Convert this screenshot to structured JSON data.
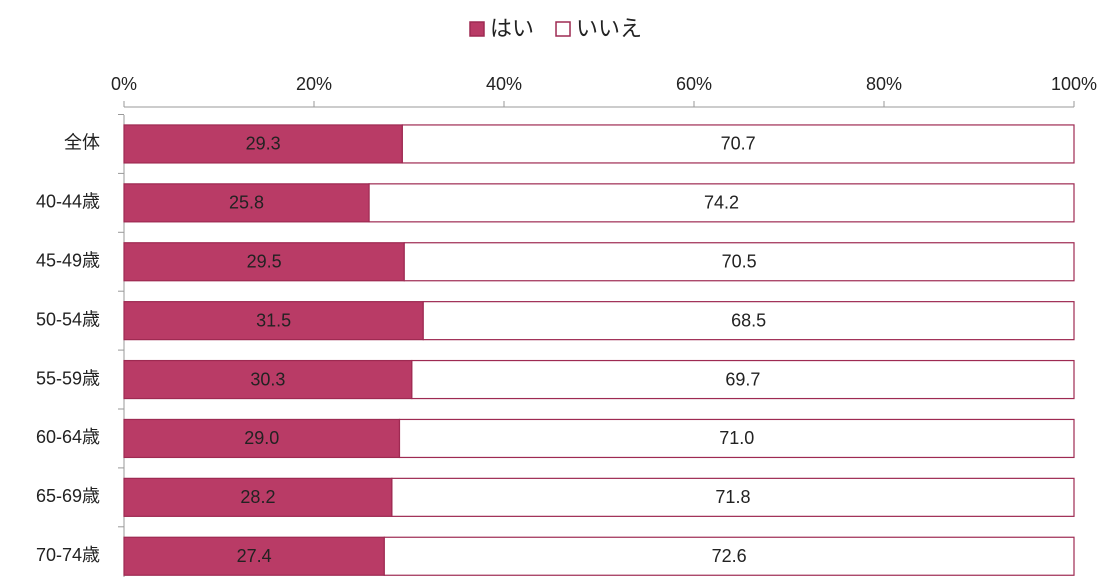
{
  "chart_data": {
    "type": "stacked-barh",
    "categories": [
      "全体",
      "40-44歳",
      "45-49歳",
      "50-54歳",
      "55-59歳",
      "60-64歳",
      "65-69歳",
      "70-74歳"
    ],
    "series": [
      {
        "name": "はい",
        "color": "#b93b66",
        "values": [
          29.3,
          25.8,
          29.5,
          31.5,
          30.3,
          29.0,
          28.2,
          27.4
        ],
        "value_labels": [
          "29.3",
          "25.8",
          "29.5",
          "31.5",
          "30.3",
          "29.0",
          "28.2",
          "27.4"
        ]
      },
      {
        "name": "いいえ",
        "color": "#ffffff",
        "values": [
          70.7,
          74.2,
          70.5,
          68.5,
          69.7,
          71.0,
          71.8,
          72.6
        ],
        "value_labels": [
          "70.7",
          "74.2",
          "70.5",
          "68.5",
          "69.7",
          "71.0",
          "71.8",
          "72.6"
        ]
      }
    ],
    "xlim": [
      0,
      100
    ],
    "xticks": [
      {
        "value": 0,
        "label": "0%"
      },
      {
        "value": 20,
        "label": "20%"
      },
      {
        "value": 40,
        "label": "40%"
      },
      {
        "value": 60,
        "label": "60%"
      },
      {
        "value": 80,
        "label": "80%"
      },
      {
        "value": 100,
        "label": "100%"
      }
    ],
    "legend": "top"
  }
}
